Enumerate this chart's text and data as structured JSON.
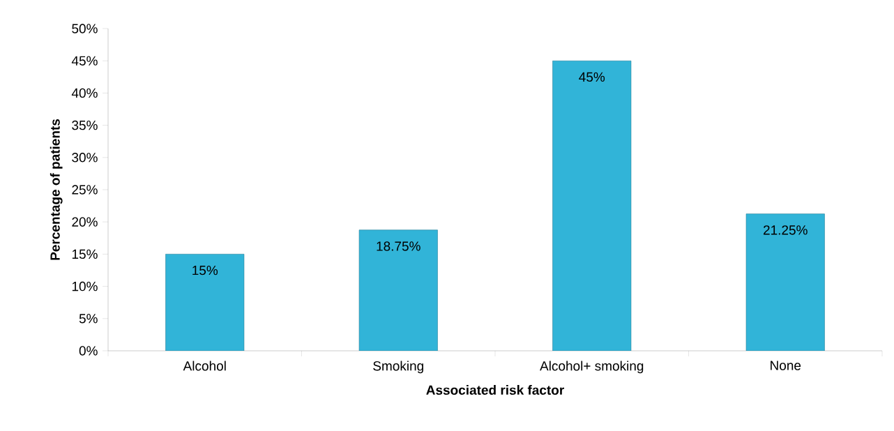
{
  "chart_data": {
    "type": "bar",
    "xlabel": "Associated risk factor",
    "ylabel": "Percentage of patients",
    "categories": [
      "Alcohol",
      "Smoking",
      "Alcohol+ smoking",
      "None"
    ],
    "values": [
      15,
      18.75,
      45,
      21.25
    ],
    "value_labels": [
      "15%",
      "18.75%",
      "45%",
      "21.25%"
    ],
    "color": "#31b4d8",
    "ylim": [
      0,
      50
    ],
    "yticks": [
      {
        "value": 0,
        "label": "0%"
      },
      {
        "value": 5,
        "label": "5%"
      },
      {
        "value": 10,
        "label": "10%"
      },
      {
        "value": 15,
        "label": "15%"
      },
      {
        "value": 20,
        "label": "20%"
      },
      {
        "value": 25,
        "label": "25%"
      },
      {
        "value": 30,
        "label": "30%"
      },
      {
        "value": 35,
        "label": "35%"
      },
      {
        "value": 40,
        "label": "40%"
      },
      {
        "value": 45,
        "label": "45%"
      },
      {
        "value": 50,
        "label": "50%"
      }
    ]
  }
}
